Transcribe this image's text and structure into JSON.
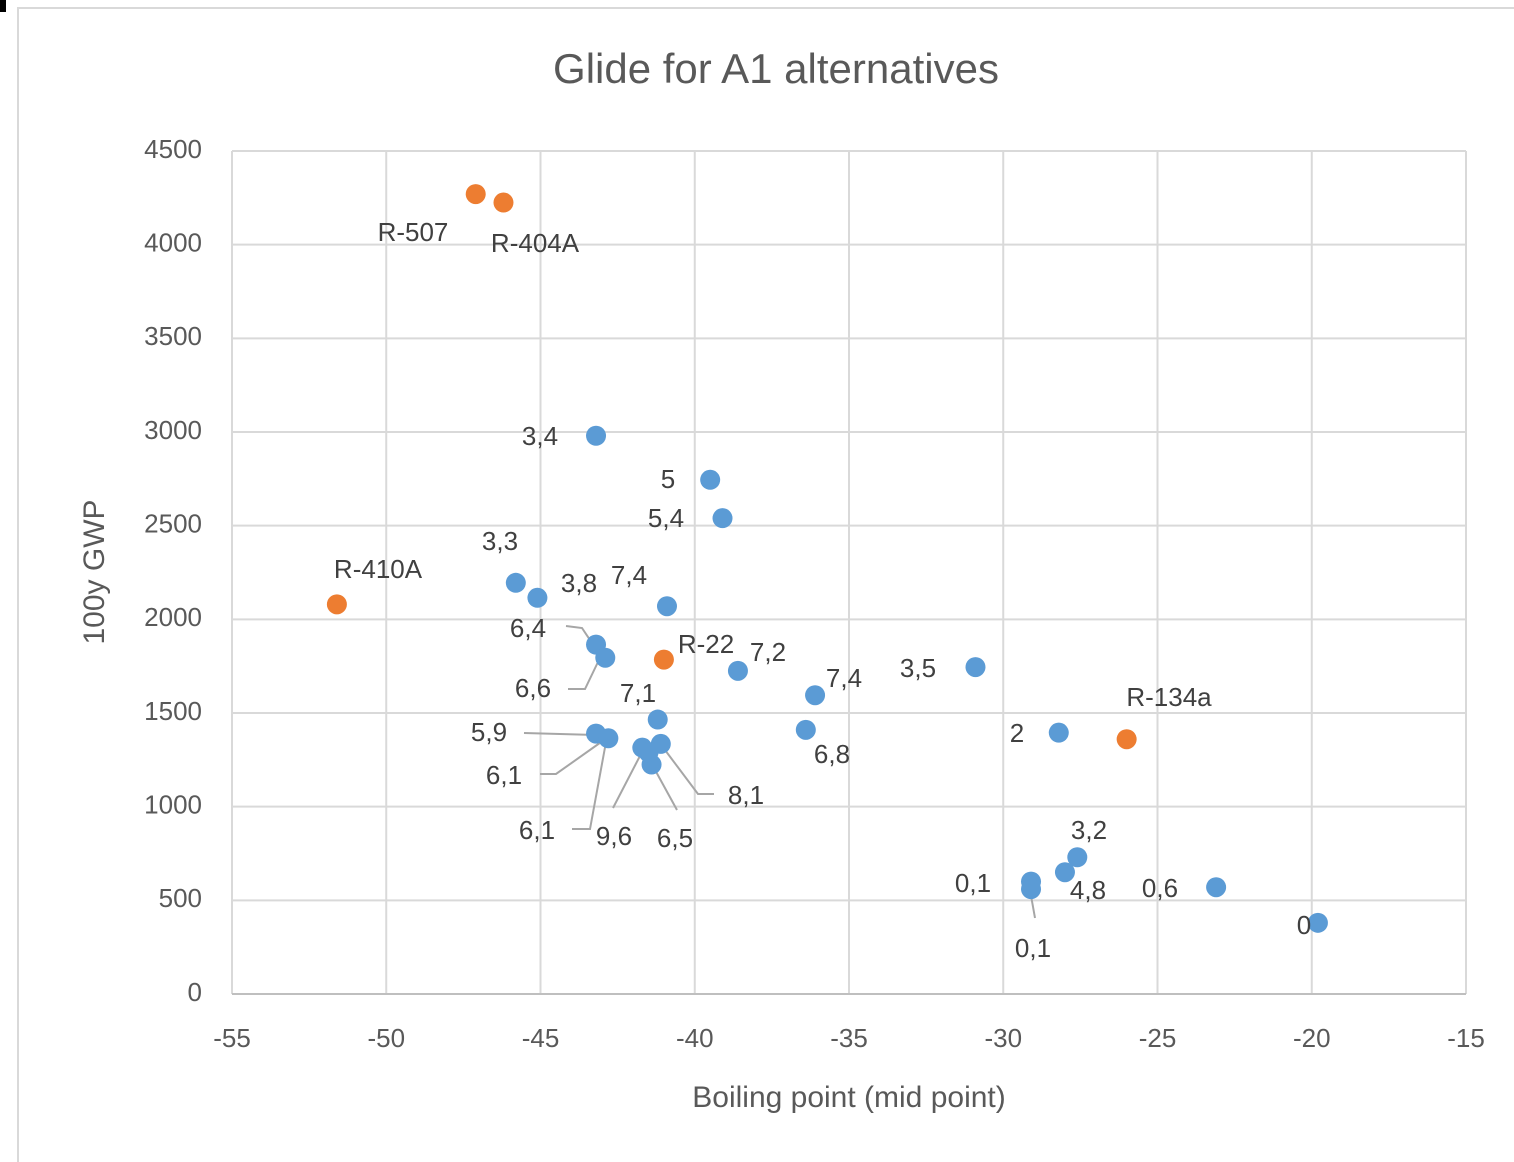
{
  "chart_data": {
    "type": "scatter",
    "title": "Glide for A1 alternatives",
    "xlabel": "Boiling point (mid point)",
    "ylabel": "100y GWP",
    "xlim": [
      -55,
      -15
    ],
    "xticks": [
      -55,
      -50,
      -45,
      -40,
      -35,
      -30,
      -25,
      -20,
      -15
    ],
    "ylim": [
      0,
      4500
    ],
    "yticks": [
      0,
      500,
      1000,
      1500,
      2000,
      2500,
      3000,
      3500,
      4000,
      4500
    ],
    "grid": true,
    "series": [
      {
        "color": "#5b9bd5",
        "x": [
          -43.2,
          -39.5,
          -39.1,
          -45.8,
          -45.1,
          -40.9,
          -43.2,
          -42.9,
          -38.6,
          -36.1,
          -30.9,
          -41.2,
          -36.4,
          -28.2,
          -43.2,
          -42.8,
          -41.7,
          -41.1,
          -41.4,
          -41.5,
          -27.6,
          -28.0,
          -29.1,
          -29.1,
          -23.1,
          -19.8
        ],
        "values": [
          2980,
          2745,
          2540,
          2195,
          2115,
          2070,
          1865,
          1795,
          1725,
          1595,
          1745,
          1465,
          1410,
          1395,
          1390,
          1365,
          1315,
          1335,
          1225,
          1290,
          730,
          650,
          600,
          560,
          570,
          380
        ],
        "labels": [
          "3,4",
          "5",
          "5,4",
          "3,3",
          "3,8",
          "7,4",
          "6,4",
          "6,6",
          "7,2",
          "7,4",
          "3,5",
          "7,1",
          "6,8",
          "2",
          "5,9",
          "6,1",
          "9,6",
          "8,1",
          "6,5",
          "6,1",
          "3,2",
          "4,8",
          "0,1",
          "0,1",
          "0,6",
          "0"
        ]
      },
      {
        "color": "#ed7d31",
        "x": [
          -47.1,
          -46.2,
          -51.6,
          -41.0,
          -26.0
        ],
        "values": [
          4270,
          4225,
          2080,
          1785,
          1360
        ],
        "labels": [
          "R-507",
          "R-404A",
          "R-410A",
          "R-22",
          "R-134a"
        ]
      }
    ]
  }
}
